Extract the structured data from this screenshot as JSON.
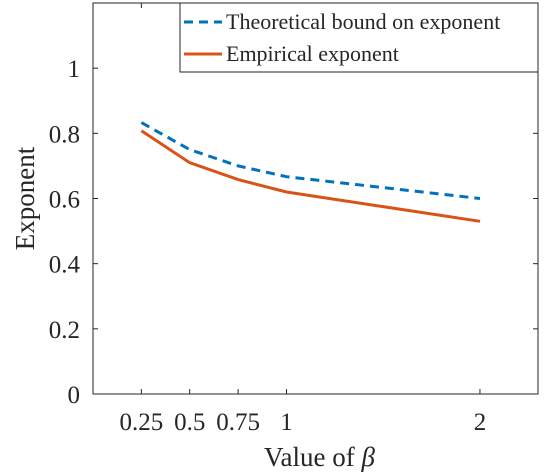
{
  "chart_data": {
    "type": "line",
    "x": [
      0.25,
      0.5,
      0.75,
      1,
      2
    ],
    "series": [
      {
        "name": "Theoretical bound on exponent",
        "values": [
          0.833,
          0.75,
          0.7,
          0.667,
          0.6
        ],
        "color": "#0072BD",
        "style": "dashed"
      },
      {
        "name": "Empirical exponent",
        "values": [
          0.808,
          0.71,
          0.658,
          0.62,
          0.53
        ],
        "color": "#D95319",
        "style": "solid"
      }
    ],
    "xticks": [
      0.25,
      0.5,
      0.75,
      1,
      2
    ],
    "xtick_labels": [
      "0.25",
      "0.5",
      "0.75",
      "1",
      "2"
    ],
    "yticks": [
      0,
      0.2,
      0.4,
      0.6,
      0.8,
      1
    ],
    "ytick_labels": [
      "0",
      "0.2",
      "0.4",
      "0.6",
      "0.8",
      "1"
    ],
    "xlim": [
      0,
      2.3
    ],
    "ylim": [
      0,
      1.2
    ],
    "xlabel_text": "Value of ",
    "xlabel_symbol": "β",
    "ylabel": "Exponent",
    "legend_position": "top-right",
    "grid": false
  }
}
